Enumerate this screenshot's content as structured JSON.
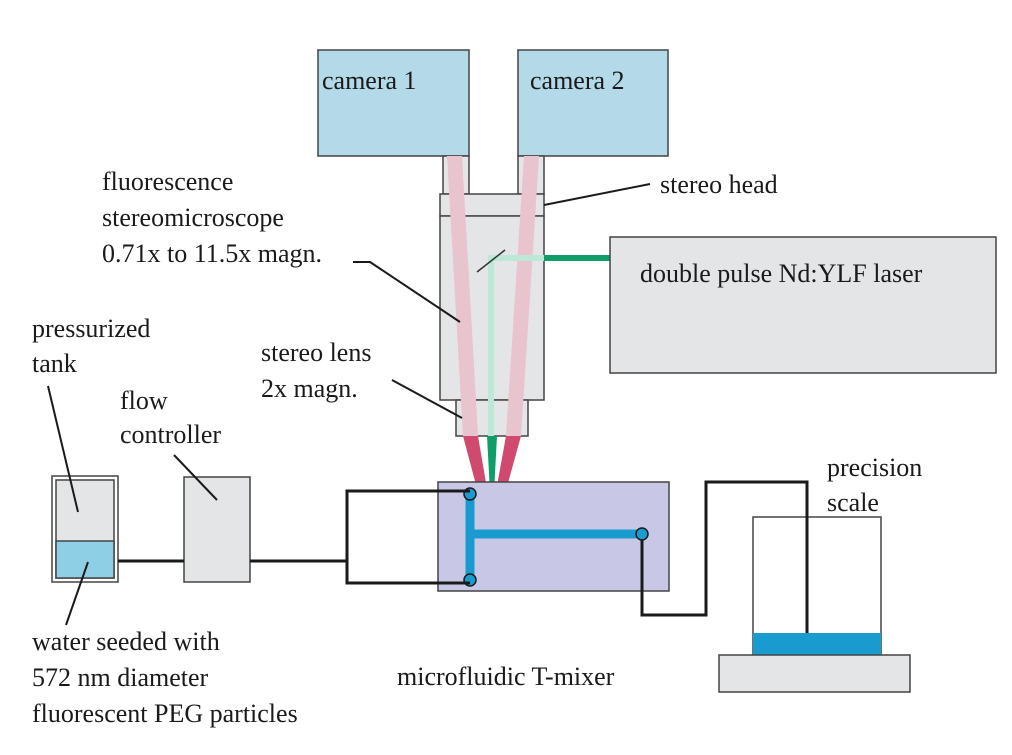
{
  "labels": {
    "camera1": "camera 1",
    "camera2": "camera 2",
    "stereo_head": "stereo head",
    "microscope": [
      "fluorescence",
      "stereomicroscope",
      "0.71x to 11.5x magn."
    ],
    "laser": "double pulse Nd:YLF laser",
    "stereo_lens": [
      "stereo lens",
      "2x magn."
    ],
    "tank": [
      "pressurized",
      "tank"
    ],
    "flow_controller": [
      "flow",
      "controller"
    ],
    "scale": [
      "precision",
      "scale"
    ],
    "water": [
      "water seeded with",
      "572 nm diameter",
      "fluorescent PEG particles"
    ],
    "mixer": "microfluidic T-mixer"
  },
  "colors": {
    "camera": "#b4d9e8",
    "gray_box": "#e4e5e7",
    "mixer": "#c8c8e6",
    "water": "#8fcfe6",
    "channel": "#1a9bd0",
    "laser_beam": "#0f9e6a",
    "beam_faint": "#bde8d8",
    "camera_path": "#e8c4cf",
    "camera_path_dark": "#d0496f"
  }
}
